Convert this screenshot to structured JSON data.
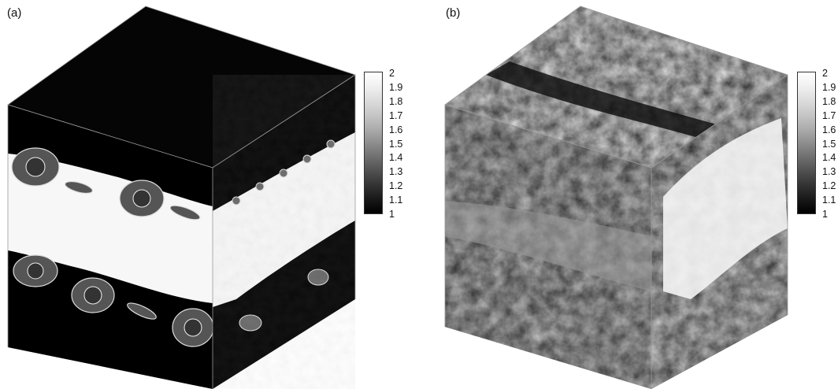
{
  "panels": [
    {
      "label": "(a)",
      "colorbar_ticks": [
        "2",
        "1.9",
        "1.8",
        "1.7",
        "1.6",
        "1.5",
        "1.4",
        "1.3",
        "1.2",
        "1.1",
        "1"
      ]
    },
    {
      "label": "(b)",
      "colorbar_ticks": [
        "2",
        "1.9",
        "1.8",
        "1.7",
        "1.6",
        "1.5",
        "1.4",
        "1.3",
        "1.2",
        "1.1",
        "1"
      ]
    }
  ],
  "colors": {
    "background": "#ffffff",
    "field_low": "#000000",
    "field_high": "#ffffff",
    "cube_edge": "#9a9a9a"
  }
}
